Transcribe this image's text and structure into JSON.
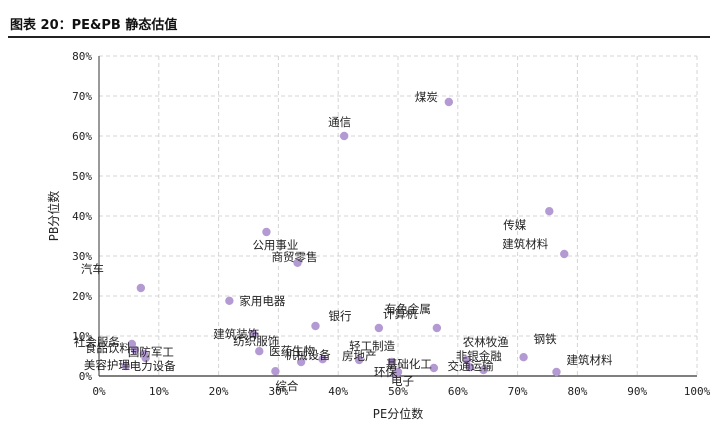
{
  "page": {
    "title": "图表 20：PE&PB 静态估值"
  },
  "chart_data": {
    "type": "scatter",
    "title": "图表 20：PE&PB 静态估值",
    "xlabel": "PE分位数",
    "ylabel": "PB分位数",
    "xlim": [
      0,
      1
    ],
    "ylim": [
      0,
      0.8
    ],
    "x_ticks": [
      "0%",
      "10%",
      "20%",
      "30%",
      "40%",
      "50%",
      "60%",
      "70%",
      "80%",
      "90%",
      "100%"
    ],
    "y_ticks": [
      "0%",
      "10%",
      "20%",
      "30%",
      "40%",
      "50%",
      "60%",
      "70%",
      "80%"
    ],
    "grid": true,
    "point_color": "#b49ad3",
    "points": [
      {
        "label": "煤炭",
        "x": 0.585,
        "y": 0.685
      },
      {
        "label": "通信",
        "x": 0.41,
        "y": 0.6
      },
      {
        "label": "传媒",
        "x": 0.753,
        "y": 0.412
      },
      {
        "label": "汽车",
        "x": 0.07,
        "y": 0.22
      },
      {
        "label": "公用事业",
        "x": 0.28,
        "y": 0.36
      },
      {
        "label": "商贸零售",
        "x": 0.332,
        "y": 0.283
      },
      {
        "label": "家用电器",
        "x": 0.218,
        "y": 0.188
      },
      {
        "label": "钢铁",
        "x": 0.71,
        "y": 0.047
      },
      {
        "label": "建筑材料",
        "x": 0.778,
        "y": 0.305
      },
      {
        "label": "有色金属",
        "x": 0.565,
        "y": 0.12
      },
      {
        "label": "计算机",
        "x": 0.468,
        "y": 0.12
      },
      {
        "label": "银行",
        "x": 0.362,
        "y": 0.125
      },
      {
        "label": "建筑装饰",
        "x": 0.258,
        "y": 0.105
      },
      {
        "label": "纺织服饰",
        "x": 0.268,
        "y": 0.062
      },
      {
        "label": "医药生物",
        "x": 0.338,
        "y": 0.035
      },
      {
        "label": "机械设备",
        "x": 0.374,
        "y": 0.042
      },
      {
        "label": "轻工制造",
        "x": 0.435,
        "y": 0.04
      },
      {
        "label": "房地产",
        "x": 0.49,
        "y": 0.035
      },
      {
        "label": "农林牧渔",
        "x": 0.615,
        "y": 0.04
      },
      {
        "label": "非银金融",
        "x": 0.62,
        "y": 0.022
      },
      {
        "label": "交通运输",
        "x": 0.643,
        "y": 0.015
      },
      {
        "label": "基础化工",
        "x": 0.56,
        "y": 0.02
      },
      {
        "label": "环保",
        "x": 0.5,
        "y": 0.01
      },
      {
        "label": "电子",
        "x": 0.495,
        "y": 0.005
      },
      {
        "label": "综合",
        "x": 0.295,
        "y": 0.012
      },
      {
        "label": "社会服务",
        "x": 0.055,
        "y": 0.08
      },
      {
        "label": "食品饮料",
        "x": 0.06,
        "y": 0.065
      },
      {
        "label": "国防军工",
        "x": 0.075,
        "y": 0.055
      },
      {
        "label": "电力设备",
        "x": 0.078,
        "y": 0.045
      },
      {
        "label": "美容护理",
        "x": 0.045,
        "y": 0.025
      },
      {
        "label": "建筑材料",
        "x": 0.765,
        "y": 0.01
      }
    ]
  }
}
